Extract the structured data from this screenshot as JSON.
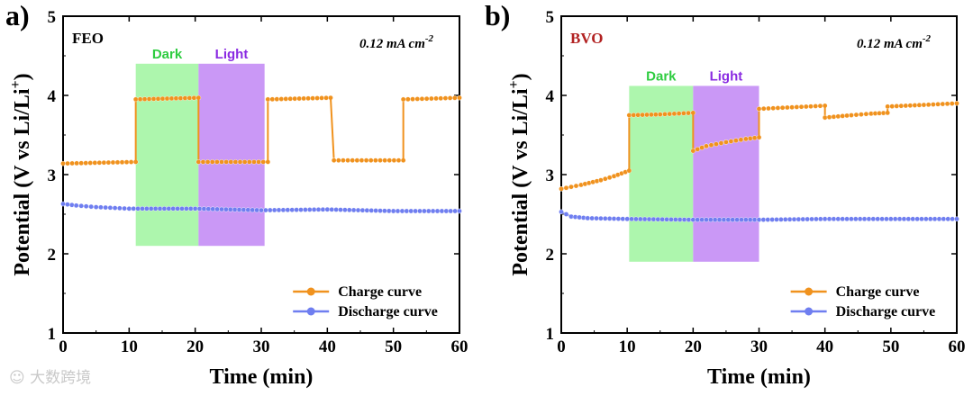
{
  "chart_data": [
    {
      "type": "line",
      "panel_label": "a)",
      "material": "FEO",
      "material_color": "#000000",
      "rate_label": "0.12 mA cm",
      "rate_sup": "-2",
      "xlabel": "Time (min)",
      "ylabel": "Potential (V vs Li/Li",
      "ylabel_sup": "+",
      "ylabel_end": ")",
      "xlim": [
        0,
        60
      ],
      "ylim": [
        1,
        5
      ],
      "xticks": [
        "0",
        "10",
        "20",
        "30",
        "40",
        "50",
        "60"
      ],
      "yticks": [
        "1",
        "2",
        "3",
        "4",
        "5"
      ],
      "regions": [
        {
          "label": "Dark",
          "x0": 11,
          "x1": 20.5,
          "y0": 2.1,
          "y1": 4.4,
          "fill": "#a9f5a9",
          "text_color": "#2ecc40"
        },
        {
          "label": "Light",
          "x0": 20.5,
          "x1": 30.5,
          "y0": 2.1,
          "y1": 4.4,
          "fill": "#c792f5",
          "text_color": "#8a2be2"
        }
      ],
      "series": [
        {
          "name": "Charge curve",
          "color": "#f0921e",
          "segments": [
            [
              [
                0,
                3.14
              ],
              [
                11,
                3.16
              ]
            ],
            [
              [
                11,
                3.95
              ],
              [
                20.5,
                3.97
              ]
            ],
            [
              [
                20.5,
                3.16
              ],
              [
                31,
                3.16
              ]
            ],
            [
              [
                31,
                3.95
              ],
              [
                40.5,
                3.97
              ]
            ],
            [
              [
                41,
                3.18
              ],
              [
                51.5,
                3.18
              ]
            ],
            [
              [
                51.5,
                3.95
              ],
              [
                60,
                3.97
              ]
            ]
          ]
        },
        {
          "name": "Discharge curve",
          "color": "#6f7ef0",
          "segments": [
            [
              [
                0,
                2.63
              ],
              [
                2,
                2.61
              ],
              [
                5,
                2.59
              ],
              [
                10,
                2.57
              ],
              [
                20,
                2.57
              ],
              [
                30,
                2.55
              ],
              [
                40,
                2.56
              ],
              [
                50,
                2.54
              ],
              [
                60,
                2.54
              ]
            ]
          ]
        }
      ],
      "legend_position": "bottom-right"
    },
    {
      "type": "line",
      "panel_label": "b)",
      "material": "BVO",
      "material_color": "#b22222",
      "rate_label": "0.12 mA cm",
      "rate_sup": "-2",
      "xlabel": "Time (min)",
      "ylabel": "Potential (V vs Li/Li",
      "ylabel_sup": "+",
      "ylabel_end": ")",
      "xlim": [
        0,
        60
      ],
      "ylim": [
        1,
        5
      ],
      "xticks": [
        "0",
        "10",
        "20",
        "30",
        "40",
        "50",
        "60"
      ],
      "yticks": [
        "1",
        "2",
        "3",
        "4",
        "5"
      ],
      "regions": [
        {
          "label": "Dark",
          "x0": 10.3,
          "x1": 20,
          "y0": 1.9,
          "y1": 4.12,
          "fill": "#a9f5a9",
          "text_color": "#2ecc40"
        },
        {
          "label": "Light",
          "x0": 20,
          "x1": 30,
          "y0": 1.9,
          "y1": 4.12,
          "fill": "#c792f5",
          "text_color": "#8a2be2"
        }
      ],
      "series": [
        {
          "name": "Charge curve",
          "color": "#f0921e",
          "segments": [
            [
              [
                0,
                2.82
              ],
              [
                3,
                2.87
              ],
              [
                6,
                2.93
              ],
              [
                8,
                2.98
              ],
              [
                10.3,
                3.05
              ]
            ],
            [
              [
                10.3,
                3.75
              ],
              [
                15,
                3.76
              ],
              [
                20,
                3.78
              ]
            ],
            [
              [
                20,
                3.3
              ],
              [
                22,
                3.36
              ],
              [
                25,
                3.41
              ],
              [
                28,
                3.45
              ],
              [
                30,
                3.47
              ]
            ],
            [
              [
                30,
                3.83
              ],
              [
                35,
                3.85
              ],
              [
                40,
                3.87
              ]
            ],
            [
              [
                40,
                3.72
              ],
              [
                44,
                3.75
              ],
              [
                47,
                3.77
              ],
              [
                49.5,
                3.78
              ]
            ],
            [
              [
                49.5,
                3.86
              ],
              [
                55,
                3.88
              ],
              [
                60,
                3.9
              ]
            ]
          ]
        },
        {
          "name": "Discharge curve",
          "color": "#6f7ef0",
          "segments": [
            [
              [
                0,
                2.53
              ],
              [
                1.5,
                2.47
              ],
              [
                4,
                2.45
              ],
              [
                10,
                2.44
              ],
              [
                20,
                2.43
              ],
              [
                30,
                2.43
              ],
              [
                40,
                2.44
              ],
              [
                50,
                2.44
              ],
              [
                60,
                2.44
              ]
            ]
          ]
        }
      ],
      "legend_position": "bottom-right"
    }
  ],
  "watermark": "大数跨境"
}
